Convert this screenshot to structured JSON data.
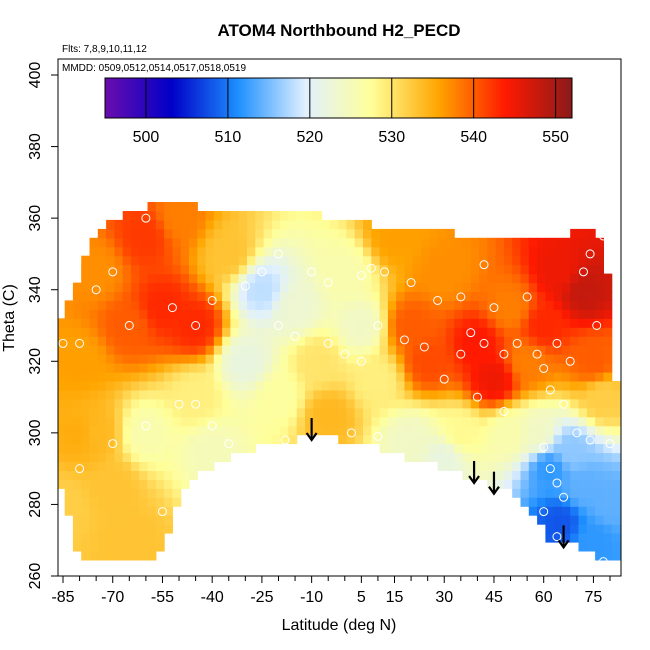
{
  "chart_data": {
    "type": "heatmap",
    "title": "ATOM4 Northbound H2_PECD",
    "annotations": {
      "flights": "Flts: 7,8,9,10,11,12",
      "dates": "MMDD: 0509,0512,0514,0517,0518,0519"
    },
    "xlabel": "Latitude (deg N)",
    "ylabel": "Theta (C)",
    "xlim": [
      -88,
      82
    ],
    "ylim": [
      260,
      405
    ],
    "x_ticks": [
      -85,
      -70,
      -55,
      -40,
      -25,
      -10,
      5,
      15,
      30,
      45,
      60,
      75
    ],
    "y_ticks": [
      260,
      280,
      300,
      320,
      340,
      360,
      380,
      400
    ],
    "colorbar": {
      "range": [
        495,
        552
      ],
      "ticks": [
        500,
        510,
        520,
        530,
        540,
        550
      ],
      "colors": [
        "#6a0dad",
        "#0000c8",
        "#1e90ff",
        "#e0f0ff",
        "#ffff99",
        "#ffa500",
        "#ff1a00",
        "#8b1a1a"
      ]
    },
    "surface": {
      "upper_boundary": [
        [
          -85,
          332
        ],
        [
          -80,
          345
        ],
        [
          -75,
          356
        ],
        [
          -70,
          360
        ],
        [
          -65,
          362
        ],
        [
          -55,
          364
        ],
        [
          -40,
          363
        ],
        [
          -25,
          362
        ],
        [
          -10,
          361
        ],
        [
          0,
          360
        ],
        [
          10,
          358
        ],
        [
          20,
          357
        ],
        [
          30,
          356
        ],
        [
          45,
          355
        ],
        [
          60,
          355
        ],
        [
          70,
          356
        ],
        [
          76,
          358
        ],
        [
          80,
          340
        ],
        [
          82,
          310
        ],
        [
          82,
          290
        ],
        [
          80,
          265
        ]
      ],
      "lower_boundary": [
        [
          -85,
          284
        ],
        [
          -80,
          265
        ],
        [
          -60,
          265
        ],
        [
          -55,
          266
        ],
        [
          -52,
          276
        ],
        [
          -48,
          286
        ],
        [
          -35,
          293
        ],
        [
          -25,
          296
        ],
        [
          -15,
          298
        ],
        [
          -10,
          299
        ],
        [
          0,
          298
        ],
        [
          10,
          296
        ],
        [
          20,
          293
        ],
        [
          30,
          290
        ],
        [
          40,
          287
        ],
        [
          45,
          285
        ],
        [
          50,
          283
        ],
        [
          55,
          280
        ],
        [
          60,
          274
        ],
        [
          63,
          268
        ],
        [
          67,
          270
        ],
        [
          72,
          268
        ],
        [
          78,
          265
        ]
      ],
      "value_field": [
        {
          "lat": -85,
          "theta": 280,
          "value": 532
        },
        {
          "lat": -75,
          "theta": 300,
          "value": 534
        },
        {
          "lat": -70,
          "theta": 285,
          "value": 533
        },
        {
          "lat": -80,
          "theta": 320,
          "value": 536
        },
        {
          "lat": -75,
          "theta": 345,
          "value": 537
        },
        {
          "lat": -65,
          "theta": 330,
          "value": 540
        },
        {
          "lat": -55,
          "theta": 335,
          "value": 543
        },
        {
          "lat": -45,
          "theta": 330,
          "value": 543
        },
        {
          "lat": -60,
          "theta": 355,
          "value": 542
        },
        {
          "lat": -50,
          "theta": 360,
          "value": 538
        },
        {
          "lat": -35,
          "theta": 350,
          "value": 533
        },
        {
          "lat": -45,
          "theta": 310,
          "value": 529
        },
        {
          "lat": -40,
          "theta": 295,
          "value": 525
        },
        {
          "lat": -30,
          "theta": 320,
          "value": 522
        },
        {
          "lat": -25,
          "theta": 340,
          "value": 518
        },
        {
          "lat": -20,
          "theta": 310,
          "value": 527
        },
        {
          "lat": -15,
          "theta": 335,
          "value": 523
        },
        {
          "lat": -8,
          "theta": 320,
          "value": 530
        },
        {
          "lat": -5,
          "theta": 305,
          "value": 534
        },
        {
          "lat": 0,
          "theta": 345,
          "value": 526
        },
        {
          "lat": 5,
          "theta": 330,
          "value": 524
        },
        {
          "lat": 10,
          "theta": 315,
          "value": 529
        },
        {
          "lat": 15,
          "theta": 355,
          "value": 536
        },
        {
          "lat": 20,
          "theta": 330,
          "value": 540
        },
        {
          "lat": 25,
          "theta": 320,
          "value": 541
        },
        {
          "lat": 30,
          "theta": 345,
          "value": 537
        },
        {
          "lat": 40,
          "theta": 325,
          "value": 544
        },
        {
          "lat": 45,
          "theta": 315,
          "value": 545
        },
        {
          "lat": 50,
          "theta": 335,
          "value": 538
        },
        {
          "lat": 35,
          "theta": 300,
          "value": 528
        },
        {
          "lat": 50,
          "theta": 300,
          "value": 526
        },
        {
          "lat": 55,
          "theta": 320,
          "value": 538
        },
        {
          "lat": 60,
          "theta": 330,
          "value": 543
        },
        {
          "lat": 65,
          "theta": 345,
          "value": 545
        },
        {
          "lat": 72,
          "theta": 340,
          "value": 548
        },
        {
          "lat": 75,
          "theta": 320,
          "value": 540
        },
        {
          "lat": 78,
          "theta": 310,
          "value": 532
        },
        {
          "lat": 58,
          "theta": 300,
          "value": 524
        },
        {
          "lat": 62,
          "theta": 290,
          "value": 512
        },
        {
          "lat": 68,
          "theta": 295,
          "value": 516
        },
        {
          "lat": 72,
          "theta": 285,
          "value": 514
        },
        {
          "lat": 65,
          "theta": 275,
          "value": 508
        },
        {
          "lat": 75,
          "theta": 270,
          "value": 512
        },
        {
          "lat": 80,
          "theta": 280,
          "value": 514
        },
        {
          "lat": 30,
          "theta": 293,
          "value": 522
        },
        {
          "lat": 20,
          "theta": 298,
          "value": 524
        },
        {
          "lat": -60,
          "theta": 300,
          "value": 526
        },
        {
          "lat": -65,
          "theta": 270,
          "value": 533
        },
        {
          "lat": -80,
          "theta": 300,
          "value": 535
        }
      ]
    },
    "markers": {
      "style": "open-circle",
      "points": [
        [
          -70,
          345
        ],
        [
          -75,
          340
        ],
        [
          -60,
          360
        ],
        [
          -52,
          335
        ],
        [
          -40,
          337
        ],
        [
          -45,
          330
        ],
        [
          -30,
          341
        ],
        [
          -25,
          345
        ],
        [
          -20,
          350
        ],
        [
          -10,
          345
        ],
        [
          -5,
          342
        ],
        [
          5,
          344
        ],
        [
          8,
          346
        ],
        [
          12,
          345
        ],
        [
          20,
          342
        ],
        [
          28,
          337
        ],
        [
          35,
          338
        ],
        [
          42,
          347
        ],
        [
          -20,
          330
        ],
        [
          -15,
          327
        ],
        [
          -5,
          325
        ],
        [
          0,
          322
        ],
        [
          5,
          320
        ],
        [
          10,
          330
        ],
        [
          18,
          326
        ],
        [
          24,
          324
        ],
        [
          35,
          322
        ],
        [
          38,
          328
        ],
        [
          42,
          325
        ],
        [
          48,
          322
        ],
        [
          52,
          325
        ],
        [
          58,
          322
        ],
        [
          60,
          318
        ],
        [
          64,
          325
        ],
        [
          68,
          320
        ],
        [
          72,
          345
        ],
        [
          74,
          350
        ],
        [
          78,
          355
        ],
        [
          76,
          330
        ],
        [
          62,
          312
        ],
        [
          66,
          308
        ],
        [
          70,
          300
        ],
        [
          74,
          298
        ],
        [
          80,
          297
        ],
        [
          60,
          296
        ],
        [
          62,
          290
        ],
        [
          64,
          286
        ],
        [
          66,
          282
        ],
        [
          60,
          278
        ],
        [
          64,
          271
        ],
        [
          68,
          268
        ],
        [
          72,
          265
        ],
        [
          78,
          264
        ],
        [
          -55,
          278
        ],
        [
          -52,
          270
        ],
        [
          -45,
          308
        ],
        [
          -40,
          302
        ],
        [
          -35,
          297
        ],
        [
          -30,
          293
        ],
        [
          -50,
          308
        ],
        [
          -60,
          302
        ],
        [
          -70,
          297
        ],
        [
          -80,
          290
        ],
        [
          -85,
          325
        ],
        [
          -65,
          330
        ],
        [
          -80,
          325
        ],
        [
          -18,
          298
        ],
        [
          2,
          300
        ],
        [
          10,
          299
        ],
        [
          40,
          310
        ],
        [
          48,
          306
        ],
        [
          30,
          315
        ],
        [
          45,
          335
        ],
        [
          55,
          338
        ]
      ]
    },
    "arrows": [
      {
        "lat": -10,
        "theta": 298
      },
      {
        "lat": 39,
        "theta": 286
      },
      {
        "lat": 45,
        "theta": 283
      },
      {
        "lat": 66,
        "theta": 268
      }
    ]
  }
}
